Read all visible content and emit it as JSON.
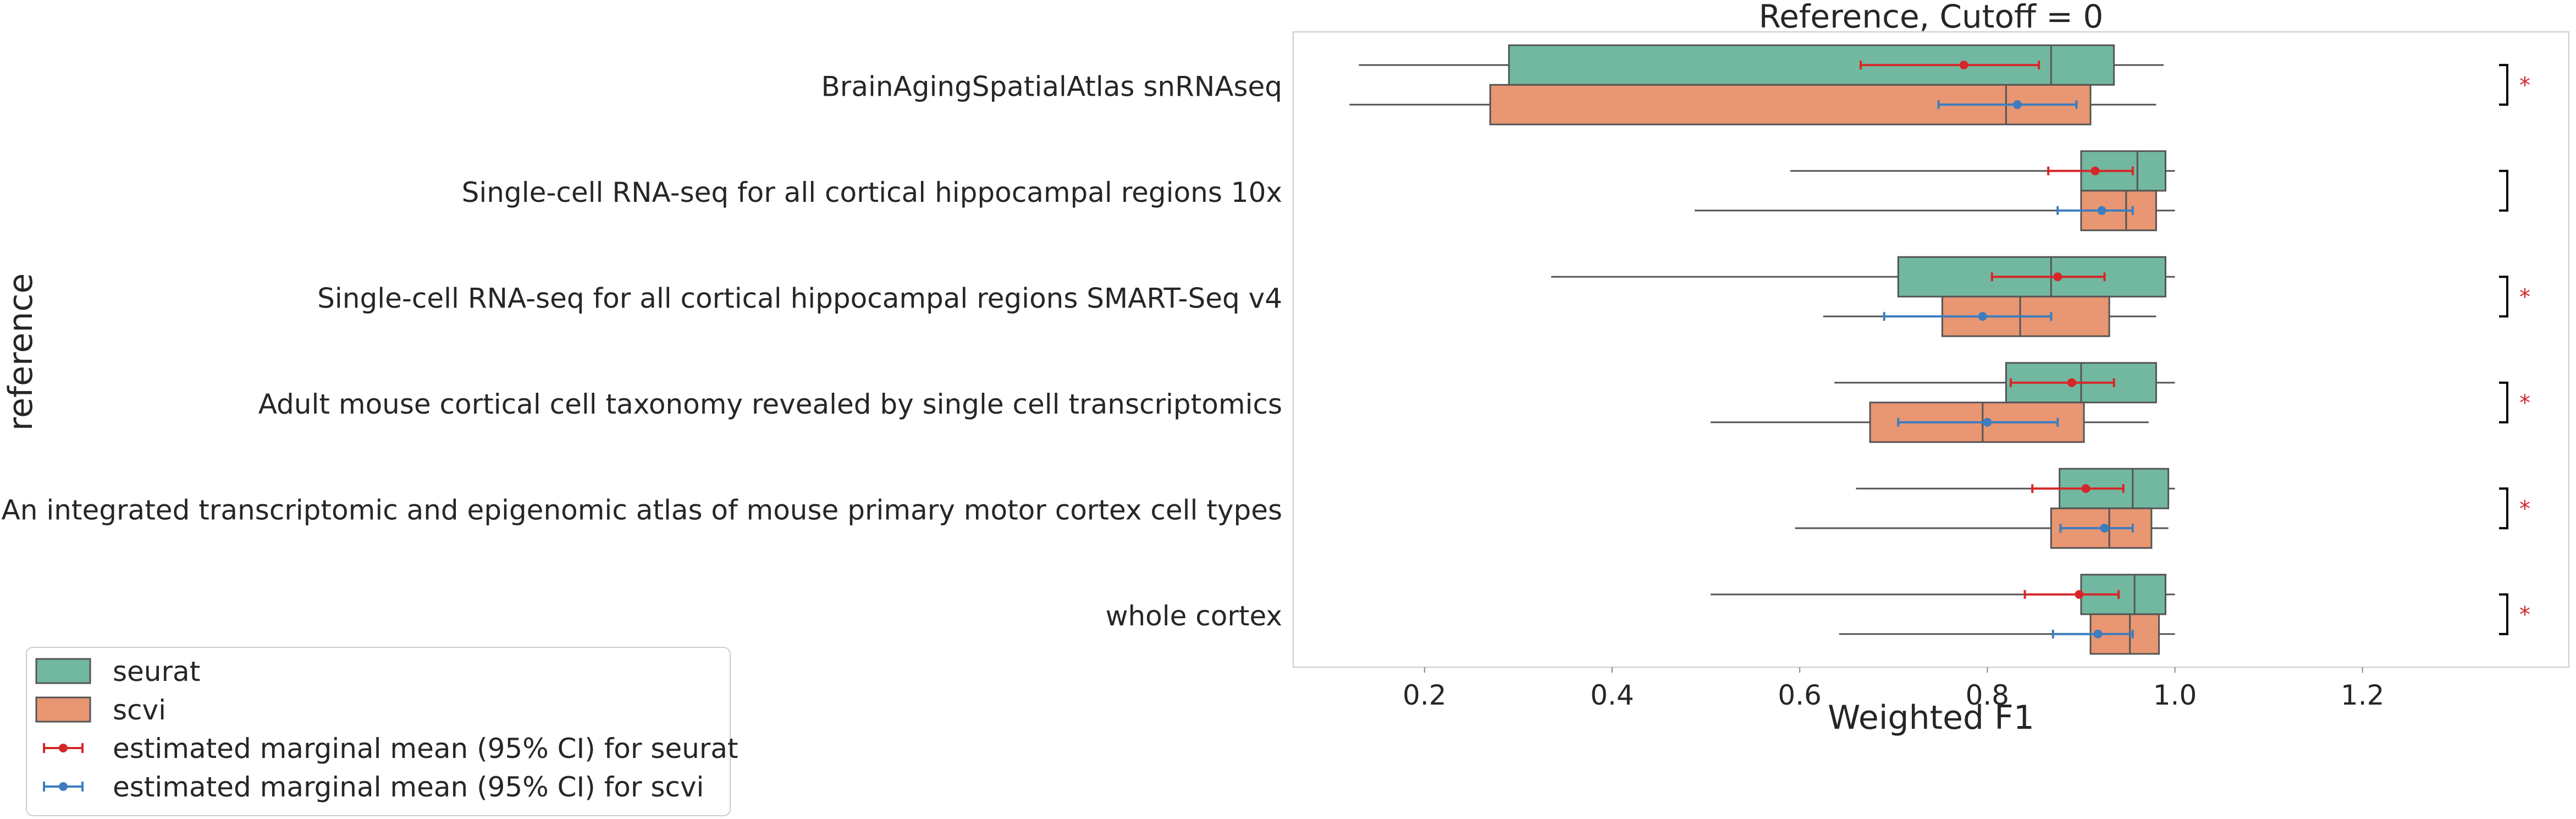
{
  "chart_data": {
    "type": "boxplot",
    "title": "Reference, Cutoff = 0",
    "xlabel": "Weighted F1",
    "ylabel": "reference",
    "xlim": [
      0.06,
      1.42
    ],
    "xticks": [
      "0.2",
      "0.4",
      "0.6",
      "0.8",
      "1.0",
      "1.2"
    ],
    "grid": false,
    "legend_position": "bottom-left",
    "colors": {
      "seurat_box": "#72b8a0",
      "scvi_box": "#e99672",
      "seurat_ci": "#d62728",
      "scvi_ci": "#3b7dbf",
      "significance": "#d62728",
      "box_edge": "#555555"
    },
    "categories": [
      "BrainAgingSpatialAtlas snRNAseq",
      "Single-cell RNA-seq for all cortical  hippocampal regions 10x",
      "Single-cell RNA-seq for all cortical  hippocampal regions SMART-Seq v4",
      "Adult mouse cortical cell taxonomy revealed by single cell transcriptomics",
      "An integrated transcriptomic and epigenomic atlas of mouse primary motor cortex cell types",
      "whole cortex"
    ],
    "series": [
      {
        "name": "seurat",
        "boxes": [
          {
            "whislo": 0.13,
            "q1": 0.29,
            "med": 0.868,
            "q3": 0.935,
            "whishi": 0.988
          },
          {
            "whislo": 0.59,
            "q1": 0.9,
            "med": 0.96,
            "q3": 0.99,
            "whishi": 1.0
          },
          {
            "whislo": 0.335,
            "q1": 0.705,
            "med": 0.868,
            "q3": 0.99,
            "whishi": 1.0
          },
          {
            "whislo": 0.637,
            "q1": 0.82,
            "med": 0.9,
            "q3": 0.98,
            "whishi": 1.0
          },
          {
            "whislo": 0.66,
            "q1": 0.877,
            "med": 0.955,
            "q3": 0.993,
            "whishi": 1.0
          },
          {
            "whislo": 0.505,
            "q1": 0.9,
            "med": 0.957,
            "q3": 0.99,
            "whishi": 1.0
          }
        ],
        "emm": [
          {
            "mean": 0.775,
            "lo": 0.665,
            "hi": 0.855
          },
          {
            "mean": 0.915,
            "lo": 0.865,
            "hi": 0.955
          },
          {
            "mean": 0.875,
            "lo": 0.805,
            "hi": 0.925
          },
          {
            "mean": 0.89,
            "lo": 0.825,
            "hi": 0.935
          },
          {
            "mean": 0.905,
            "lo": 0.848,
            "hi": 0.945
          },
          {
            "mean": 0.898,
            "lo": 0.84,
            "hi": 0.94
          }
        ]
      },
      {
        "name": "scvi",
        "boxes": [
          {
            "whislo": 0.12,
            "q1": 0.27,
            "med": 0.82,
            "q3": 0.91,
            "whishi": 0.98
          },
          {
            "whislo": 0.488,
            "q1": 0.9,
            "med": 0.948,
            "q3": 0.98,
            "whishi": 1.0
          },
          {
            "whislo": 0.625,
            "q1": 0.752,
            "med": 0.835,
            "q3": 0.93,
            "whishi": 0.98
          },
          {
            "whislo": 0.505,
            "q1": 0.675,
            "med": 0.795,
            "q3": 0.903,
            "whishi": 0.972
          },
          {
            "whislo": 0.595,
            "q1": 0.868,
            "med": 0.93,
            "q3": 0.975,
            "whishi": 0.993
          },
          {
            "whislo": 0.642,
            "q1": 0.91,
            "med": 0.952,
            "q3": 0.983,
            "whishi": 1.0
          }
        ],
        "emm": [
          {
            "mean": 0.832,
            "lo": 0.748,
            "hi": 0.895
          },
          {
            "mean": 0.922,
            "lo": 0.875,
            "hi": 0.955
          },
          {
            "mean": 0.795,
            "lo": 0.69,
            "hi": 0.868
          },
          {
            "mean": 0.8,
            "lo": 0.705,
            "hi": 0.875
          },
          {
            "mean": 0.925,
            "lo": 0.878,
            "hi": 0.955
          },
          {
            "mean": 0.918,
            "lo": 0.87,
            "hi": 0.955
          }
        ]
      }
    ],
    "significance": [
      "*",
      "",
      "*",
      "*",
      "*",
      "*"
    ],
    "legend": [
      {
        "label": "seurat",
        "kind": "patch",
        "series": "seurat"
      },
      {
        "label": "scvi",
        "kind": "patch",
        "series": "scvi"
      },
      {
        "label": "estimated marginal mean (95% CI) for seurat",
        "kind": "errorbar",
        "series": "seurat"
      },
      {
        "label": "estimated marginal mean (95% CI) for scvi",
        "kind": "errorbar",
        "series": "scvi"
      }
    ]
  }
}
